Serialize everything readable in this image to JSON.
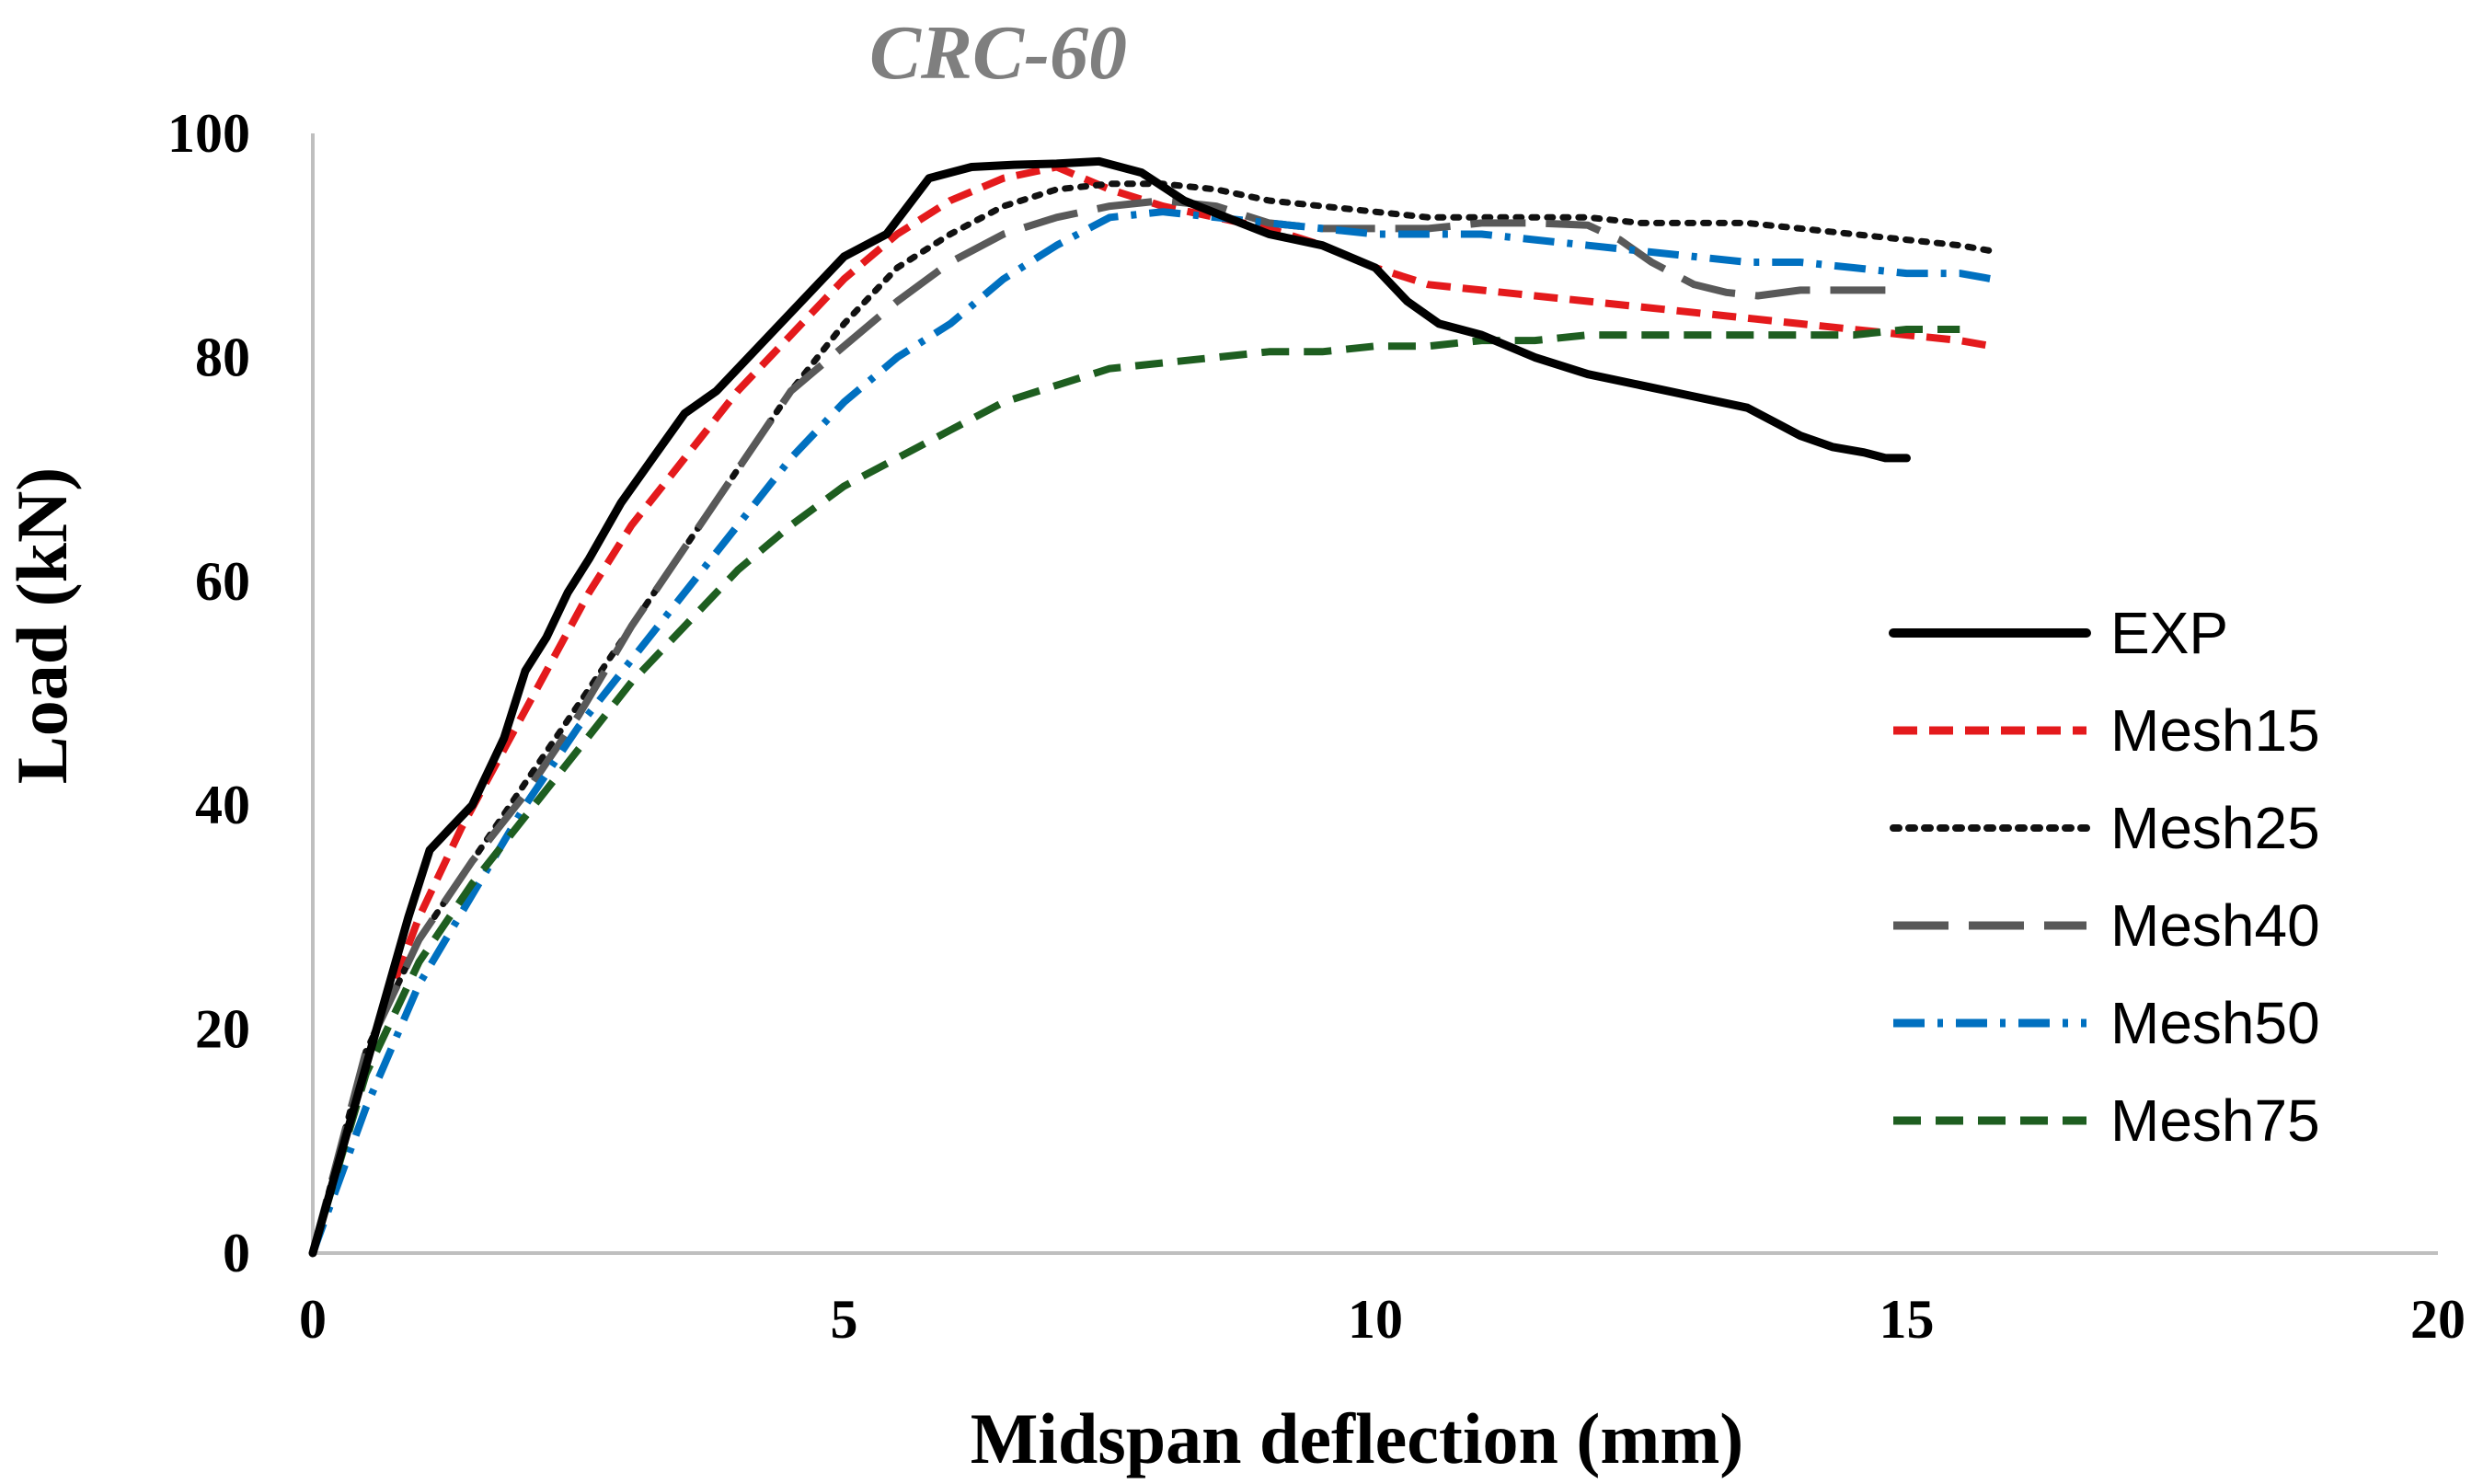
{
  "chart_data": {
    "type": "line",
    "title": "CRC-60",
    "xlabel": "Midspan deflection (mm)",
    "ylabel": "Load (kN)",
    "xlim": [
      0,
      20
    ],
    "ylim": [
      0,
      100
    ],
    "x_ticks": [
      "0",
      "5",
      "10",
      "15",
      "20"
    ],
    "y_ticks": [
      "0",
      "20",
      "40",
      "60",
      "80",
      "100"
    ],
    "x_tick_values": [
      0,
      5,
      10,
      15,
      20
    ],
    "y_tick_values": [
      0,
      20,
      40,
      60,
      80,
      100
    ],
    "grid": false,
    "legend_position": "right",
    "series": [
      {
        "name": "EXP",
        "color": "#000000",
        "style": "solid",
        "x": [
          0,
          0.3,
          0.6,
          0.9,
          1.1,
          1.3,
          1.5,
          1.7,
          1.8,
          2.0,
          2.2,
          2.4,
          2.6,
          2.9,
          3.2,
          3.5,
          3.8,
          4.2,
          4.6,
          5.0,
          5.4,
          5.8,
          6.2,
          6.6,
          7.0,
          7.4,
          7.8,
          8.2,
          8.6,
          9.0,
          9.5,
          10.0,
          10.3,
          10.6,
          11.0,
          11.5,
          12.0,
          12.5,
          13.0,
          13.5,
          13.8,
          14.0,
          14.3,
          14.6,
          14.8,
          15.0
        ],
        "y": [
          0,
          10,
          20,
          30,
          36,
          38,
          40,
          44,
          46,
          52,
          55,
          59,
          62,
          67,
          71,
          75,
          77,
          81,
          85,
          89,
          91,
          96,
          97,
          97.2,
          97.3,
          97.5,
          96.5,
          94,
          92.5,
          91,
          90,
          88,
          85,
          83,
          82,
          80,
          78.5,
          77.5,
          76.5,
          75.5,
          74,
          73,
          72,
          71.5,
          71,
          71
        ]
      },
      {
        "name": "Mesh15",
        "color": "#E41A1C",
        "style": "dashed",
        "x": [
          0,
          0.3,
          0.6,
          1.0,
          1.4,
          1.8,
          2.2,
          2.6,
          3.0,
          3.5,
          4.0,
          4.5,
          5.0,
          5.5,
          6.0,
          6.5,
          7.0,
          7.5,
          8.0,
          8.5,
          9.0,
          9.5,
          10.0,
          10.5,
          11.0,
          11.5,
          12.0,
          12.5,
          13.0,
          13.5,
          14.0,
          14.5,
          15.0,
          15.5,
          15.8
        ],
        "y": [
          0,
          10,
          20,
          30,
          38,
          45,
          52,
          59,
          65,
          71,
          77,
          82,
          87,
          91,
          94,
          96,
          97,
          95,
          93.5,
          92.5,
          91.5,
          90,
          88,
          86.5,
          86,
          85.5,
          85,
          84.5,
          84,
          83.5,
          83,
          82.5,
          82,
          81.5,
          81
        ]
      },
      {
        "name": "Mesh25",
        "color": "#111111",
        "style": "dotted",
        "x": [
          0,
          0.5,
          1.0,
          1.5,
          2.0,
          2.5,
          3.0,
          3.5,
          4.0,
          4.5,
          5.0,
          5.5,
          6.0,
          6.5,
          7.0,
          7.5,
          8.0,
          8.5,
          9.0,
          9.5,
          10.0,
          10.5,
          11.0,
          11.5,
          12.0,
          12.5,
          13.0,
          13.5,
          14.0,
          14.5,
          15.0,
          15.5,
          15.8
        ],
        "y": [
          0,
          18,
          28,
          35,
          42,
          49,
          56,
          63,
          70,
          77,
          83,
          88,
          91,
          93.5,
          95,
          95.5,
          95.5,
          95,
          94,
          93.5,
          93,
          92.5,
          92.5,
          92.5,
          92.5,
          92,
          92,
          92,
          91.5,
          91,
          90.5,
          90,
          89.5
        ]
      },
      {
        "name": "Mesh40",
        "color": "#595959",
        "style": "longdash",
        "x": [
          0,
          0.5,
          1.0,
          1.5,
          2.0,
          2.5,
          3.0,
          3.5,
          4.0,
          4.5,
          5.0,
          5.5,
          6.0,
          6.5,
          7.0,
          7.5,
          8.0,
          8.5,
          9.0,
          9.5,
          10.0,
          10.5,
          11.0,
          11.5,
          12.0,
          12.3,
          12.6,
          13.0,
          13.3,
          13.6,
          14.0,
          14.3,
          14.8
        ],
        "y": [
          0,
          18,
          28,
          35,
          41,
          48,
          56,
          63,
          70,
          77,
          81,
          85,
          88.5,
          91,
          92.5,
          93.5,
          94,
          93.5,
          92,
          91.5,
          91.5,
          91.5,
          92,
          92,
          91.8,
          90.5,
          88.5,
          86.5,
          85.8,
          85.5,
          86,
          86,
          86
        ]
      },
      {
        "name": "Mesh50",
        "color": "#0070C0",
        "style": "dashdot",
        "x": [
          0,
          0.5,
          1.0,
          1.5,
          2.0,
          2.5,
          3.0,
          3.5,
          4.0,
          4.5,
          5.0,
          5.5,
          6.0,
          6.5,
          7.0,
          7.5,
          8.0,
          8.5,
          9.0,
          9.5,
          10.0,
          10.5,
          11.0,
          11.5,
          12.0,
          12.5,
          13.0,
          13.5,
          14.0,
          14.5,
          15.0,
          15.5,
          15.8
        ],
        "y": [
          0,
          13,
          24,
          32,
          40,
          47,
          53,
          59,
          65,
          71,
          76,
          80,
          83,
          87,
          90,
          92.5,
          93,
          92.5,
          92,
          91.5,
          91,
          91,
          91,
          90.5,
          90,
          89.5,
          89,
          88.5,
          88.5,
          88,
          87.5,
          87.5,
          87
        ]
      },
      {
        "name": "Mesh75",
        "color": "#1E5E20",
        "style": "dashed2",
        "x": [
          0,
          0.5,
          1.0,
          1.5,
          2.0,
          2.5,
          3.0,
          3.5,
          4.0,
          4.5,
          5.0,
          5.5,
          6.0,
          6.5,
          7.0,
          7.5,
          8.0,
          8.5,
          9.0,
          9.5,
          10.0,
          10.5,
          11.0,
          11.5,
          12.0,
          12.5,
          13.0,
          13.5,
          14.0,
          14.5,
          15.0,
          15.5
        ],
        "y": [
          0,
          16,
          26,
          33,
          39,
          45,
          51,
          56,
          61,
          65,
          68.5,
          71,
          73.5,
          76,
          77.5,
          79,
          79.5,
          80,
          80.5,
          80.5,
          81,
          81,
          81.5,
          81.5,
          82,
          82,
          82,
          82,
          82,
          82,
          82.5,
          82.5
        ]
      }
    ]
  }
}
